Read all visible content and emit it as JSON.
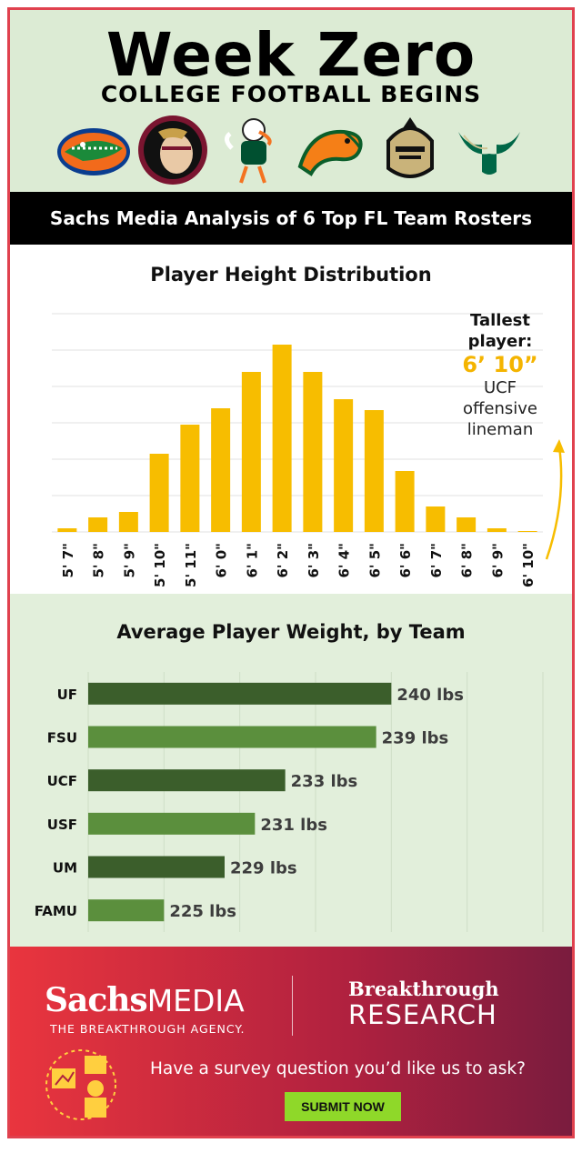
{
  "header": {
    "title": "Week Zero",
    "subtitle": "COLLEGE FOOTBALL BEGINS",
    "logos": [
      "gator-logo",
      "seminole-logo",
      "hurricane-ibis-logo",
      "rattler-logo",
      "knight-logo",
      "bull-horns-logo"
    ]
  },
  "banner": {
    "text": "Sachs Media Analysis of 6 Top FL Team Rosters"
  },
  "callout": {
    "line1": "Tallest",
    "line2": "player:",
    "height": "6’ 10”",
    "desc1": "UCF",
    "desc2": "offensive",
    "desc3": "lineman"
  },
  "colors": {
    "gold": "#f7bd00",
    "dark_green": "#3b5e2b",
    "light_green": "#5b8f3d",
    "brand_red": "#e0414e"
  },
  "chart_data": [
    {
      "type": "bar",
      "title": "Player Height Distribution",
      "categories": [
        "5' 7\"",
        "5' 8\"",
        "5' 9\"",
        "5' 10\"",
        "5' 11\"",
        "6' 0\"",
        "6' 1\"",
        "6' 2\"",
        "6' 3\"",
        "6' 4\"",
        "6' 5\"",
        "6' 6\"",
        "6' 7\"",
        "6' 8\"",
        "6' 9\"",
        "6' 10\""
      ],
      "values": [
        4,
        16,
        22,
        86,
        118,
        136,
        176,
        206,
        176,
        146,
        134,
        67,
        28,
        16,
        4,
        1
      ],
      "ylim": [
        0,
        240
      ],
      "grid": true,
      "color": "#f7bd00"
    },
    {
      "type": "bar",
      "orientation": "horizontal",
      "title": "Average Player Weight, by Team",
      "categories": [
        "UF",
        "FSU",
        "UCF",
        "USF",
        "UM",
        "FAMU"
      ],
      "values": [
        240,
        239,
        233,
        231,
        229,
        225
      ],
      "value_labels": [
        "240 lbs",
        "239 lbs",
        "233 lbs",
        "231 lbs",
        "229 lbs",
        "225 lbs"
      ],
      "xlim": [
        220,
        250
      ],
      "grid": true,
      "colors": [
        "#3b5e2b",
        "#5b8f3d",
        "#3b5e2b",
        "#5b8f3d",
        "#3b5e2b",
        "#5b8f3d"
      ]
    }
  ],
  "footer": {
    "brand_sachs": "Sachs",
    "brand_media": "MEDIA",
    "tagline": "THE BREAKTHROUGH AGENCY.",
    "brand2_top": "Breakthrough",
    "brand2_bottom": "RESEARCH",
    "survey_question": "Have a survey question you’d like us to ask?",
    "submit_label": "SUBMIT NOW"
  }
}
